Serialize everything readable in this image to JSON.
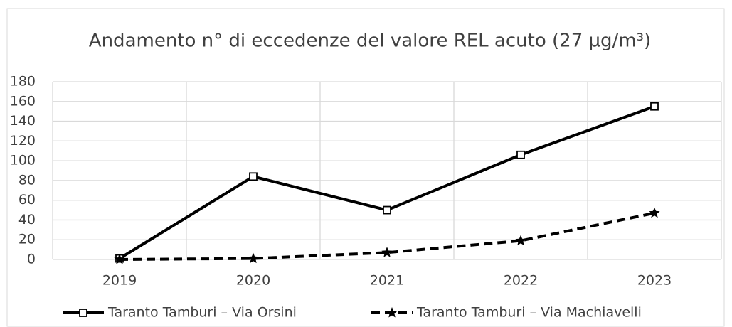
{
  "chart_data": {
    "type": "line",
    "title": "Andamento n° di eccedenze del valore REL acuto (27 µg/m³)",
    "categories": [
      "2019",
      "2020",
      "2021",
      "2022",
      "2023"
    ],
    "series": [
      {
        "name": "Taranto Tamburi – Via Orsini",
        "color": "#000000",
        "dash": "solid",
        "marker": "square",
        "values": [
          1,
          84,
          50,
          106,
          155
        ]
      },
      {
        "name": "Taranto Tamburi – Via Machiavelli",
        "color": "#000000",
        "dash": "dashed",
        "marker": "star",
        "values": [
          0,
          1,
          7,
          19,
          47
        ]
      }
    ],
    "ylim": [
      0,
      180
    ],
    "yticks": [
      0,
      20,
      40,
      60,
      80,
      100,
      120,
      140,
      160,
      180
    ],
    "grid": true,
    "legend": "bottom"
  }
}
